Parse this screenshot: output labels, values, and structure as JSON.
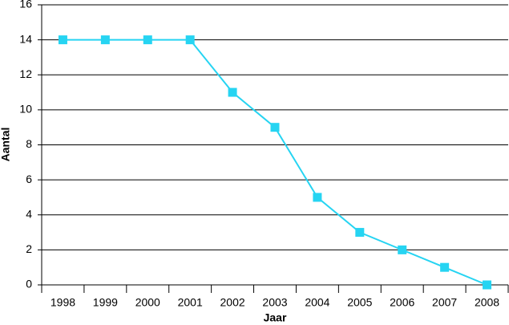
{
  "chart_data": {
    "type": "line",
    "x_label": "Jaar",
    "y_label": "Aantal",
    "categories": [
      "1998",
      "1999",
      "2000",
      "2001",
      "2002",
      "2003",
      "2004",
      "2005",
      "2006",
      "2007",
      "2008"
    ],
    "series": [
      {
        "name": "Aantal",
        "color": "#26d4f2",
        "values": [
          14,
          14,
          14,
          14,
          11,
          9,
          5,
          3,
          2,
          1,
          0
        ]
      }
    ],
    "ylim": [
      0,
      16
    ],
    "yticks": [
      0,
      2,
      4,
      6,
      8,
      10,
      12,
      14,
      16
    ],
    "grid": true
  }
}
